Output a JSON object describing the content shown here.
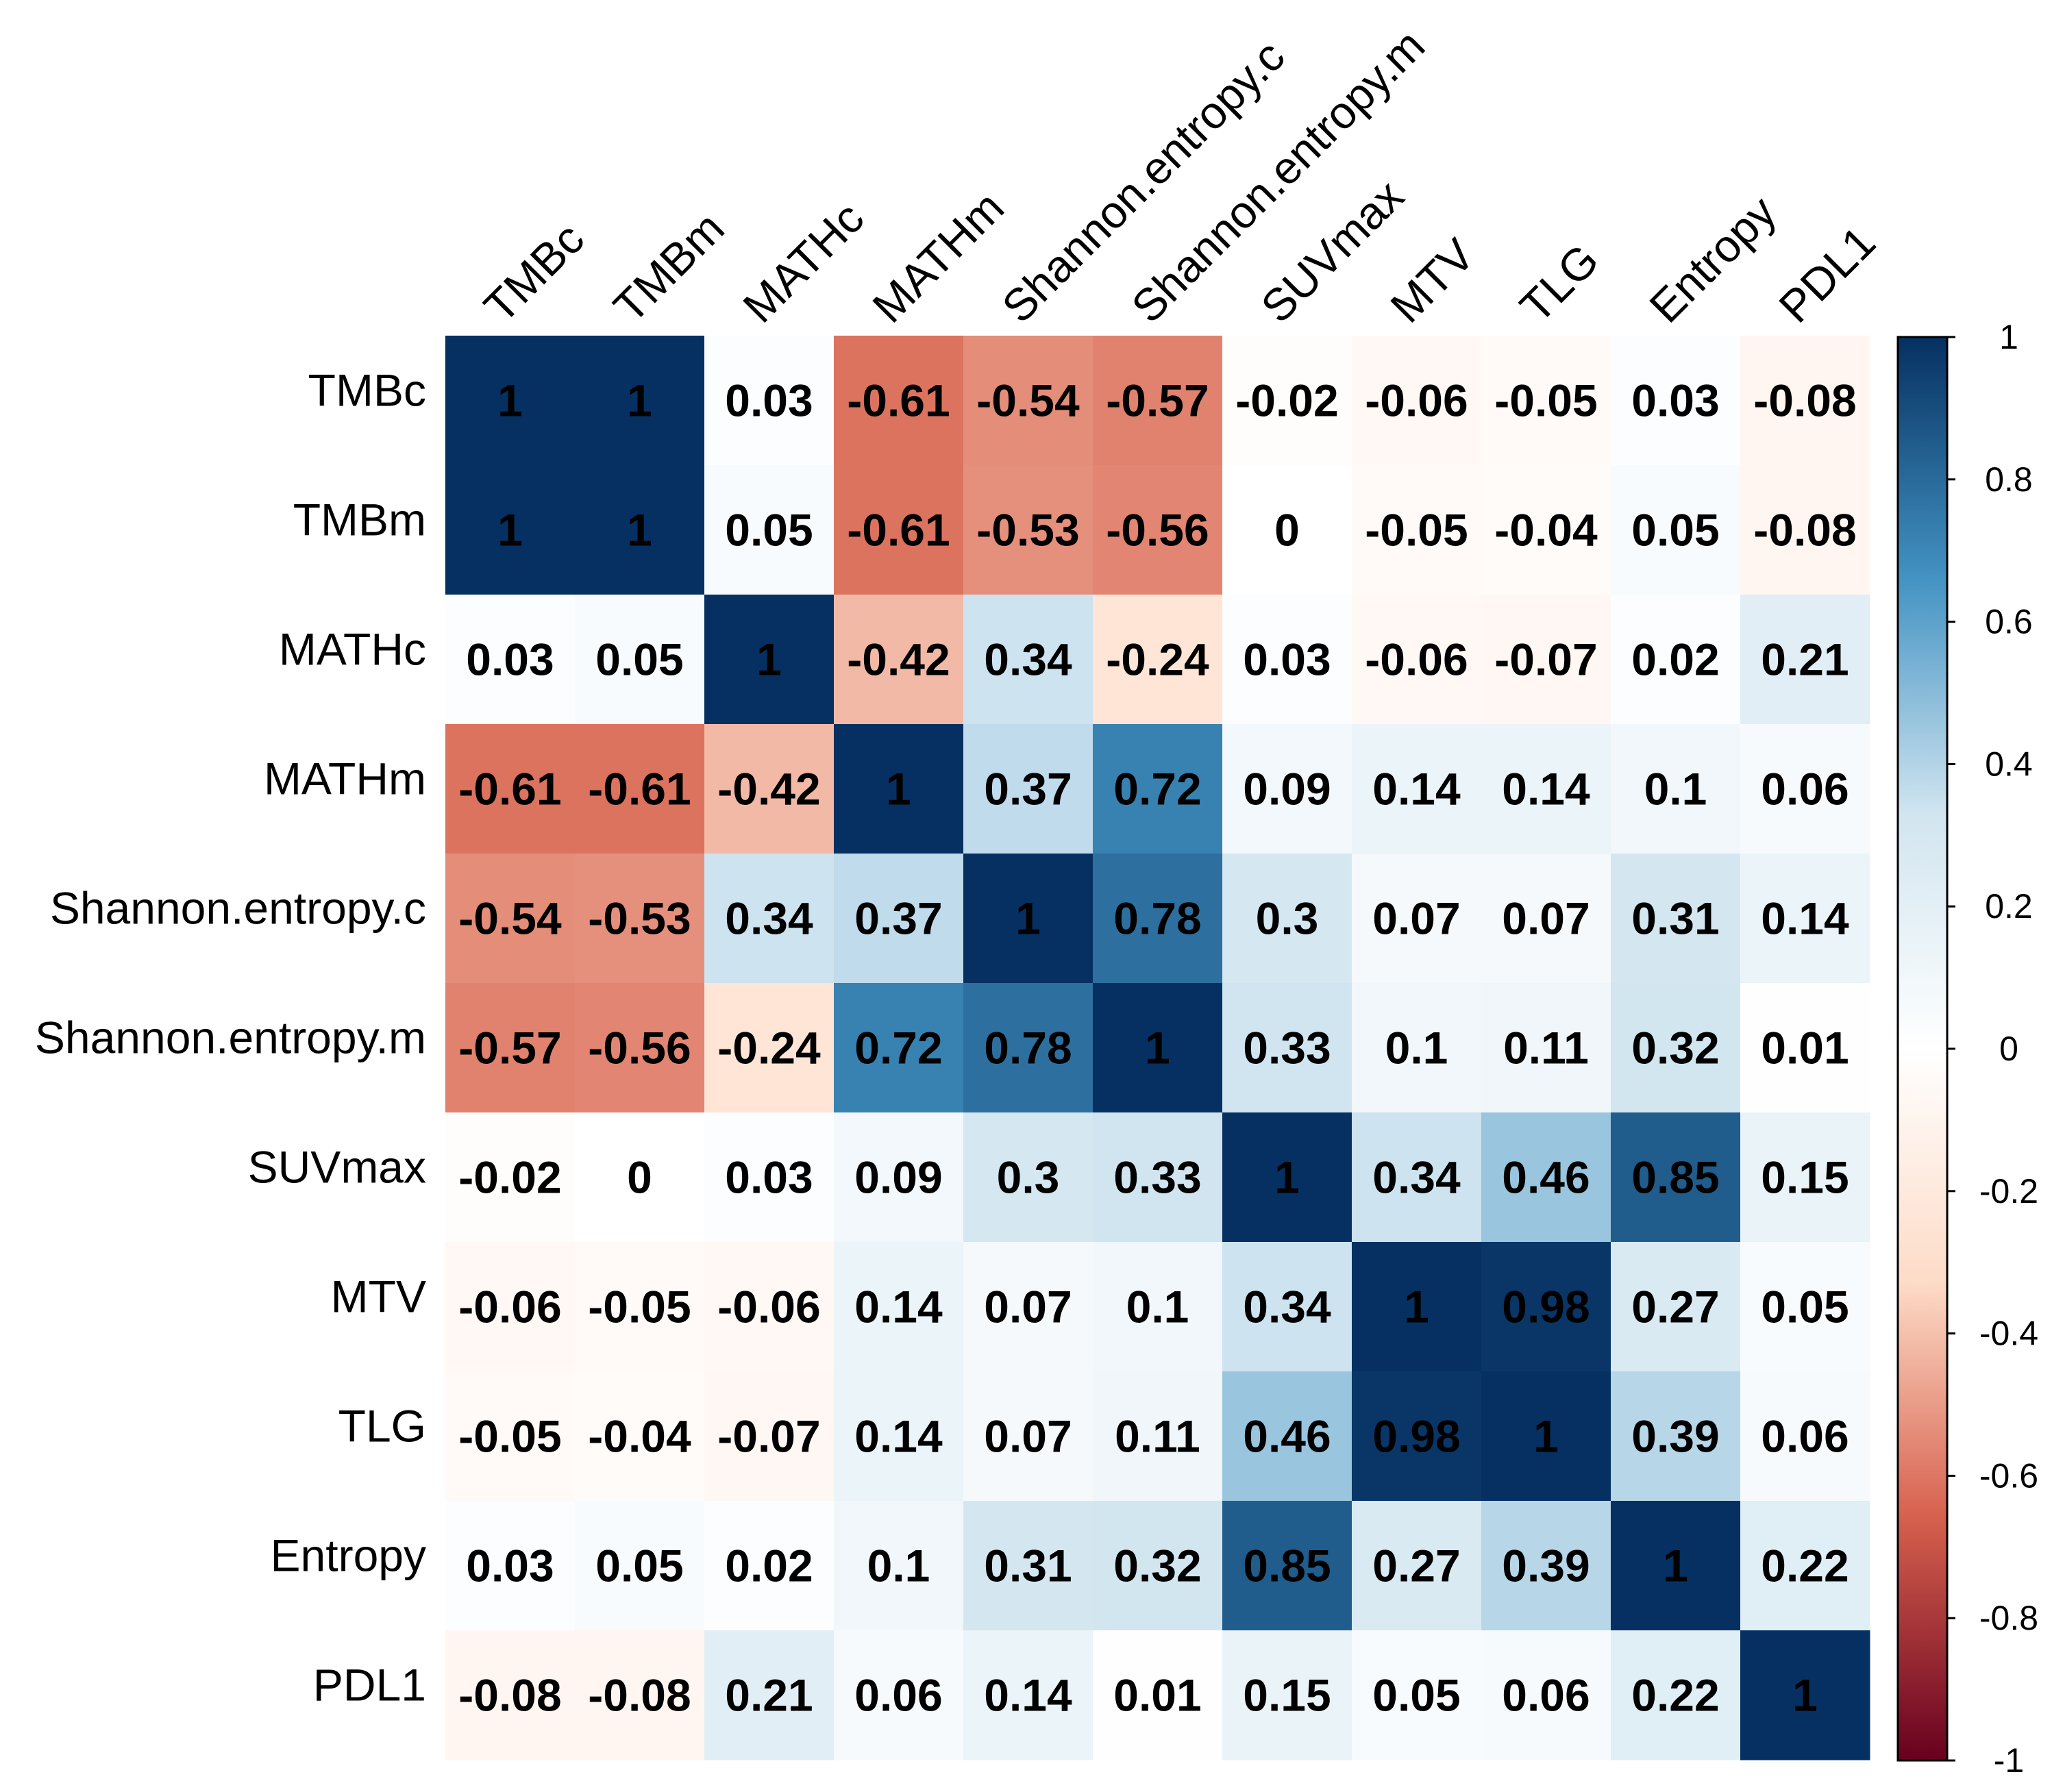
{
  "chart_data": {
    "type": "heatmap",
    "title": "",
    "variables": [
      "TMBc",
      "TMBm",
      "MATHc",
      "MATHm",
      "Shannon.entropy.c",
      "Shannon.entropy.m",
      "SUVmax",
      "MTV",
      "TLG",
      "Entropy",
      "PDL1"
    ],
    "matrix": [
      [
        1,
        1,
        0.03,
        -0.61,
        -0.54,
        -0.57,
        -0.02,
        -0.06,
        -0.05,
        0.03,
        -0.08
      ],
      [
        1,
        1,
        0.05,
        -0.61,
        -0.53,
        -0.56,
        0,
        -0.05,
        -0.04,
        0.05,
        -0.08
      ],
      [
        0.03,
        0.05,
        1,
        -0.42,
        0.34,
        -0.24,
        0.03,
        -0.06,
        -0.07,
        0.02,
        0.21
      ],
      [
        -0.61,
        -0.61,
        -0.42,
        1,
        0.37,
        0.72,
        0.09,
        0.14,
        0.14,
        0.1,
        0.06
      ],
      [
        -0.54,
        -0.53,
        0.34,
        0.37,
        1,
        0.78,
        0.3,
        0.07,
        0.07,
        0.31,
        0.14
      ],
      [
        -0.57,
        -0.56,
        -0.24,
        0.72,
        0.78,
        1,
        0.33,
        0.1,
        0.11,
        0.32,
        0.01
      ],
      [
        -0.02,
        0,
        0.03,
        0.09,
        0.3,
        0.33,
        1,
        0.34,
        0.46,
        0.85,
        0.15
      ],
      [
        -0.06,
        -0.05,
        -0.06,
        0.14,
        0.07,
        0.1,
        0.34,
        1,
        0.98,
        0.27,
        0.05
      ],
      [
        -0.05,
        -0.04,
        -0.07,
        0.14,
        0.07,
        0.11,
        0.46,
        0.98,
        1,
        0.39,
        0.06
      ],
      [
        0.03,
        0.05,
        0.02,
        0.1,
        0.31,
        0.32,
        0.85,
        0.27,
        0.39,
        1,
        0.22
      ],
      [
        -0.08,
        -0.08,
        0.21,
        0.06,
        0.14,
        0.01,
        0.15,
        0.05,
        0.06,
        0.22,
        1
      ]
    ],
    "colorbar": {
      "range": [
        -1,
        1
      ],
      "ticks": [
        "1",
        "0.8",
        "0.6",
        "0.4",
        "0.2",
        "0",
        "-0.2",
        "-0.4",
        "-0.6",
        "-0.8",
        "-1"
      ],
      "tick_values": [
        1,
        0.8,
        0.6,
        0.4,
        0.2,
        0,
        -0.2,
        -0.4,
        -0.6,
        -0.8,
        -1
      ],
      "colors": {
        "neg_end": "#67001F",
        "neg_mid": "#D6604D",
        "neg_light": "#FDDBC7",
        "zero": "#FFFFFF",
        "pos_light": "#D1E5F0",
        "pos_mid": "#4393C3",
        "pos_end": "#053061"
      }
    }
  }
}
